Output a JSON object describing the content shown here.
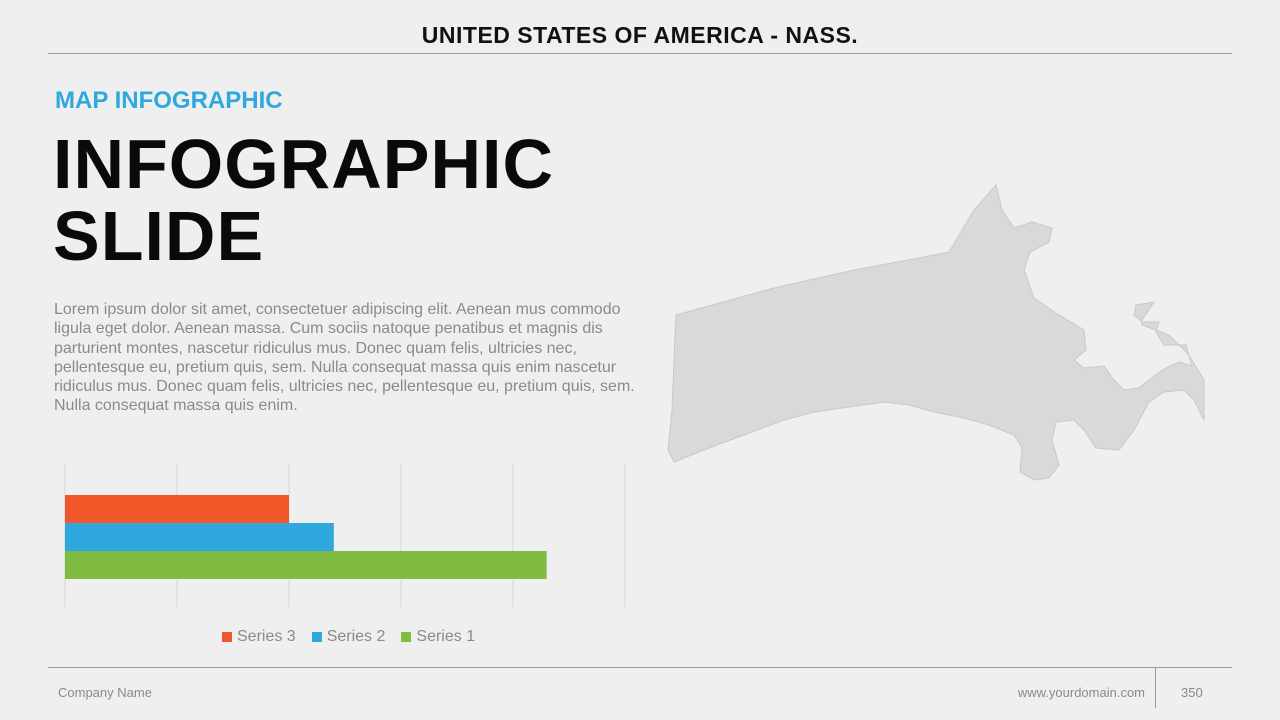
{
  "header": {
    "title": "UNITED STATES OF AMERICA - NASS."
  },
  "slide": {
    "subtitle": "MAP INFOGRAPHIC",
    "title_line1": "INFOGRAPHIC",
    "title_line2": "SLIDE",
    "body": "Lorem ipsum dolor sit amet, consectetuer adipiscing elit. Aenean mus commodo ligula eget dolor. Aenean massa. Cum sociis natoque penatibus et magnis dis parturient montes, nascetur ridiculus mus. Donec quam felis, ultricies nec, pellentesque eu, pretium quis, sem. Nulla consequat massa quis enim nascetur ridiculus mus. Donec quam felis, ultricies nec, pellentesque eu, pretium quis, sem. Nulla consequat massa quis enim."
  },
  "map": {
    "region_icon": "massachusetts-map-icon",
    "color": "#d9d9d9"
  },
  "chart_data": {
    "type": "bar",
    "orientation": "horizontal",
    "categories": [
      ""
    ],
    "xlim": [
      0,
      5
    ],
    "grid": true,
    "legend_position": "bottom",
    "series": [
      {
        "name": "Series 3",
        "values": [
          2.0
        ],
        "color": "#f0582a"
      },
      {
        "name": "Series 2",
        "values": [
          2.4
        ],
        "color": "#2fa8df"
      },
      {
        "name": "Series 1",
        "values": [
          4.3
        ],
        "color": "#80bc41"
      }
    ]
  },
  "footer": {
    "company": "Company Name",
    "domain": "www.yourdomain.com",
    "page": "350"
  }
}
